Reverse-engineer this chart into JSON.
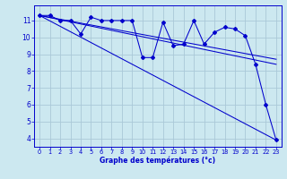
{
  "xlabel": "Graphe des températures (°c)",
  "bg_color": "#cce8f0",
  "grid_color": "#aac8d8",
  "line_color": "#0000cc",
  "xlim": [
    -0.5,
    23.5
  ],
  "ylim": [
    3.5,
    11.9
  ],
  "xticks": [
    0,
    1,
    2,
    3,
    4,
    5,
    6,
    7,
    8,
    9,
    10,
    11,
    12,
    13,
    14,
    15,
    16,
    17,
    18,
    19,
    20,
    21,
    22,
    23
  ],
  "yticks": [
    4,
    5,
    6,
    7,
    8,
    9,
    10,
    11
  ],
  "main_x": [
    0,
    1,
    2,
    3,
    4,
    5,
    6,
    7,
    8,
    9,
    10,
    11,
    12,
    13,
    14,
    15,
    16,
    17,
    18,
    19,
    20,
    21,
    22,
    23
  ],
  "main_y": [
    11.3,
    11.3,
    11.0,
    11.0,
    10.2,
    11.2,
    11.0,
    11.0,
    11.0,
    11.0,
    8.8,
    8.8,
    10.9,
    9.5,
    9.6,
    11.0,
    9.6,
    10.3,
    10.6,
    10.5,
    10.1,
    8.4,
    6.0,
    3.9
  ],
  "trend1_x": [
    0,
    23
  ],
  "trend1_y": [
    11.3,
    3.9
  ],
  "trend2_x": [
    0,
    23
  ],
  "trend2_y": [
    11.3,
    8.4
  ],
  "trend3_x": [
    0,
    23
  ],
  "trend3_y": [
    11.3,
    8.7
  ]
}
